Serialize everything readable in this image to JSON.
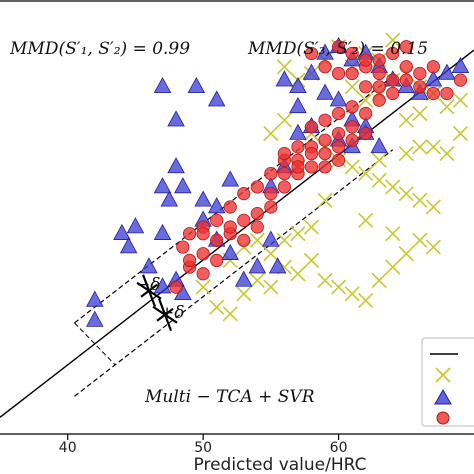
{
  "chart_data": {
    "type": "scatter",
    "xlabel": "Predicted value/HRC",
    "ylabel": "",
    "xlim": [
      35,
      70
    ],
    "ylim": [
      15,
      80
    ],
    "x_ticks": [
      40,
      50,
      60
    ],
    "grid": false,
    "legend_position": "bottom-right",
    "annotations": {
      "mmd_left": "MMD(S′₁, S′₂) = 0.99",
      "mmd_right": "MMD(S′₃, S′₂) = 0.15",
      "method": "Multi − TCA + SVR",
      "minus_delta": "−δ",
      "plus_delta": "+δ"
    },
    "reference_line": {
      "x": [
        35,
        70
      ],
      "y": [
        17.5,
        72.5
      ]
    },
    "band_offset": 5.5,
    "band_x_range": [
      40.5,
      64
    ],
    "series": [
      {
        "marker": "x",
        "color": "#c8c832",
        "points": [
          [
            59,
            71
          ],
          [
            60,
            73
          ],
          [
            61,
            70
          ],
          [
            62,
            72
          ],
          [
            63,
            71
          ],
          [
            64,
            74
          ],
          [
            58,
            69
          ],
          [
            57,
            68
          ],
          [
            56,
            70
          ],
          [
            61,
            67
          ],
          [
            62,
            65
          ],
          [
            63,
            66
          ],
          [
            64,
            68
          ],
          [
            65,
            69
          ],
          [
            66,
            67
          ],
          [
            67,
            66
          ],
          [
            68,
            64
          ],
          [
            69,
            65
          ],
          [
            66,
            63
          ],
          [
            65,
            62
          ],
          [
            58,
            60
          ],
          [
            59,
            58
          ],
          [
            60,
            56
          ],
          [
            61,
            55
          ],
          [
            62,
            54
          ],
          [
            63,
            53
          ],
          [
            64,
            52
          ],
          [
            65,
            51
          ],
          [
            66,
            50
          ],
          [
            67,
            49
          ],
          [
            59,
            50
          ],
          [
            58,
            46
          ],
          [
            57,
            45
          ],
          [
            56,
            44
          ],
          [
            55,
            42
          ],
          [
            54,
            44
          ],
          [
            53,
            43
          ],
          [
            52,
            41
          ],
          [
            54,
            38
          ],
          [
            55,
            37
          ],
          [
            53,
            36
          ],
          [
            52,
            33
          ],
          [
            51,
            34
          ],
          [
            50,
            37
          ],
          [
            56,
            40
          ],
          [
            57,
            39
          ],
          [
            58,
            41
          ],
          [
            59,
            38
          ],
          [
            60,
            37
          ],
          [
            61,
            36
          ],
          [
            62,
            35
          ],
          [
            63,
            38
          ],
          [
            64,
            40
          ],
          [
            65,
            42
          ],
          [
            66,
            44
          ],
          [
            67,
            43
          ],
          [
            64,
            45
          ],
          [
            62,
            47
          ],
          [
            63,
            56
          ],
          [
            65,
            57
          ],
          [
            66,
            58
          ],
          [
            67,
            58
          ],
          [
            68,
            57
          ],
          [
            69,
            60
          ],
          [
            57,
            55
          ],
          [
            55,
            60
          ],
          [
            56,
            62
          ]
        ]
      },
      {
        "marker": "triangle",
        "color": "#3a3ad6",
        "points": [
          [
            42,
            35
          ],
          [
            42,
            32
          ],
          [
            44,
            45
          ],
          [
            44.5,
            43
          ],
          [
            45,
            46
          ],
          [
            46,
            40
          ],
          [
            47,
            37
          ],
          [
            48,
            38
          ],
          [
            48.5,
            36
          ],
          [
            47,
            45
          ],
          [
            47.5,
            50
          ],
          [
            47,
            52
          ],
          [
            48,
            55
          ],
          [
            48.5,
            52
          ],
          [
            48,
            62
          ],
          [
            47,
            67
          ],
          [
            49.5,
            67
          ],
          [
            51,
            65
          ],
          [
            50,
            50
          ],
          [
            50,
            47
          ],
          [
            51,
            49
          ],
          [
            52,
            53
          ],
          [
            51,
            44
          ],
          [
            52,
            42
          ],
          [
            53,
            38
          ],
          [
            54,
            40
          ],
          [
            55,
            44
          ],
          [
            55.5,
            40
          ],
          [
            55,
            52
          ],
          [
            56,
            55
          ],
          [
            57,
            60
          ],
          [
            57,
            67
          ],
          [
            56,
            68
          ],
          [
            58,
            69
          ],
          [
            59,
            72
          ],
          [
            60,
            73
          ],
          [
            61,
            71
          ],
          [
            62,
            72
          ],
          [
            63,
            70
          ],
          [
            64,
            68
          ],
          [
            65,
            67
          ],
          [
            66,
            66
          ],
          [
            67,
            68
          ],
          [
            68,
            69
          ],
          [
            69,
            70
          ],
          [
            59,
            66
          ],
          [
            60,
            65
          ],
          [
            61,
            62
          ],
          [
            62,
            60
          ],
          [
            58,
            61
          ],
          [
            57,
            64
          ],
          [
            60,
            59
          ],
          [
            61,
            58
          ],
          [
            62,
            61
          ],
          [
            63,
            58
          ]
        ]
      },
      {
        "marker": "circle",
        "color": "#ee3030",
        "points": [
          [
            48,
            37
          ],
          [
            49,
            40
          ],
          [
            50,
            42
          ],
          [
            51,
            41
          ],
          [
            51,
            44
          ],
          [
            52,
            45
          ],
          [
            53,
            47
          ],
          [
            54,
            48
          ],
          [
            55,
            49
          ],
          [
            56,
            52
          ],
          [
            57,
            54
          ],
          [
            57,
            56
          ],
          [
            58,
            55
          ],
          [
            59,
            57
          ],
          [
            59,
            59
          ],
          [
            60,
            58
          ],
          [
            60,
            60
          ],
          [
            61,
            59
          ],
          [
            61,
            61
          ],
          [
            62,
            60
          ],
          [
            62,
            63
          ],
          [
            63,
            65
          ],
          [
            63,
            67
          ],
          [
            64,
            66
          ],
          [
            64,
            68
          ],
          [
            65,
            70
          ],
          [
            65,
            68
          ],
          [
            66,
            67
          ],
          [
            66,
            69
          ],
          [
            67,
            70
          ],
          [
            67,
            66
          ],
          [
            68,
            66
          ],
          [
            69,
            68
          ],
          [
            62,
            70
          ],
          [
            61,
            72
          ],
          [
            60,
            73
          ],
          [
            61,
            69
          ],
          [
            62,
            67
          ],
          [
            63,
            69
          ],
          [
            58,
            58
          ],
          [
            57,
            55
          ],
          [
            56,
            56
          ],
          [
            55,
            54
          ],
          [
            54,
            52
          ],
          [
            53,
            51
          ],
          [
            52,
            49
          ],
          [
            51,
            47
          ],
          [
            50,
            46
          ],
          [
            49,
            45
          ],
          [
            50,
            45
          ],
          [
            52,
            46
          ],
          [
            53,
            44
          ],
          [
            54,
            46
          ],
          [
            55,
            51
          ],
          [
            56,
            54
          ],
          [
            57,
            58
          ],
          [
            58,
            61
          ],
          [
            59,
            62
          ],
          [
            60,
            63
          ],
          [
            61,
            64
          ],
          [
            59,
            70
          ],
          [
            58,
            72
          ],
          [
            60,
            69
          ],
          [
            62,
            71
          ],
          [
            63,
            71
          ],
          [
            64,
            72
          ],
          [
            65,
            73
          ],
          [
            48.5,
            43
          ],
          [
            49,
            41
          ],
          [
            50,
            39
          ],
          [
            56,
            57
          ],
          [
            58,
            57
          ],
          [
            59,
            55
          ],
          [
            60,
            56
          ]
        ]
      }
    ]
  }
}
